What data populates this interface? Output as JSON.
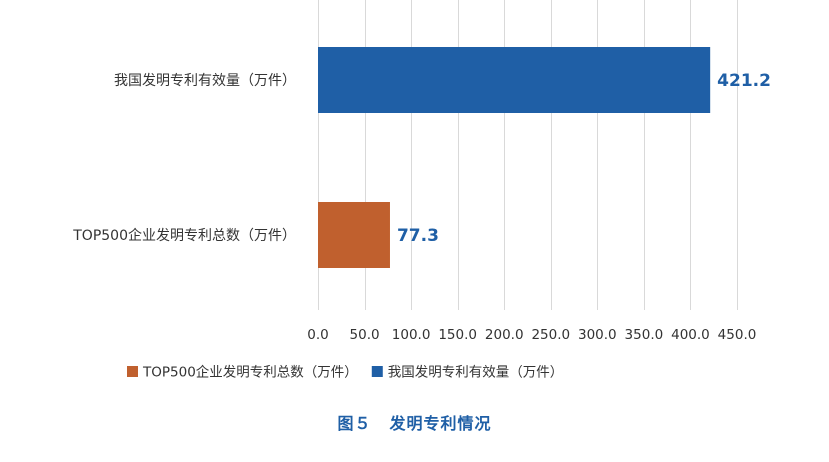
{
  "chart_data": {
    "type": "bar",
    "orientation": "horizontal",
    "categories": [
      "我国发明专利有效量（万件）",
      "TOP500企业发明专利总数（万件）"
    ],
    "series": [
      {
        "name": "TOP500企业发明专利总数（万件）",
        "category": "TOP500企业发明专利总数（万件）",
        "value": 77.3,
        "label": "77.3",
        "color": "#c0602e"
      },
      {
        "name": "我国发明专利有效量（万件）",
        "category": "我国发明专利有效量（万件）",
        "value": 421.2,
        "label": "421.2",
        "color": "#1f5fa6"
      }
    ],
    "xlim": [
      0,
      450
    ],
    "xticks": [
      "0.0",
      "50.0",
      "100.0",
      "150.0",
      "200.0",
      "250.0",
      "300.0",
      "350.0",
      "400.0",
      "450.0"
    ],
    "grid": true,
    "legend_position": "bottom"
  },
  "caption": {
    "number": "图５",
    "title": "发明专利情况"
  }
}
